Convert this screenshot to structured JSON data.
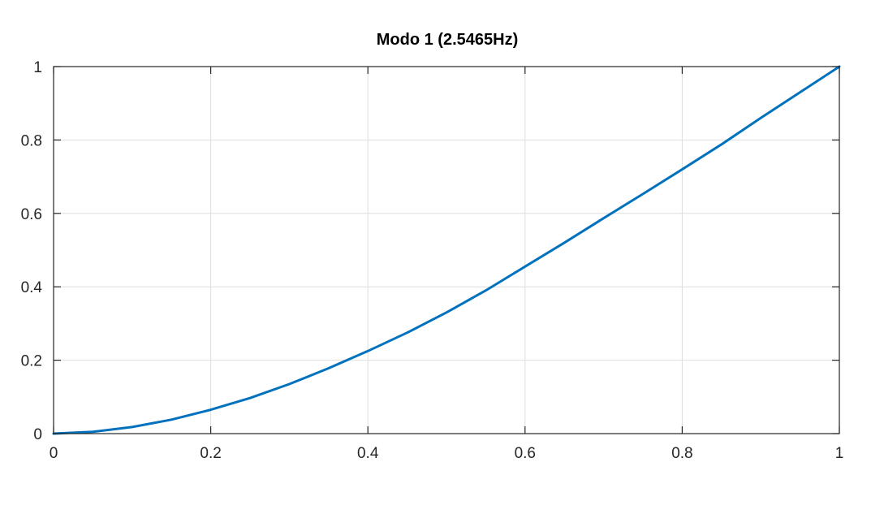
{
  "chart_data": {
    "type": "line",
    "title": "Modo 1 (2.5465Hz)",
    "xlabel": "",
    "ylabel": "",
    "xlim": [
      0,
      1
    ],
    "ylim": [
      0,
      1
    ],
    "xticks": [
      0,
      0.2,
      0.4,
      0.6,
      0.8,
      1
    ],
    "xtick_labels": [
      "0",
      "0.2",
      "0.4",
      "0.6",
      "0.8",
      "1"
    ],
    "yticks": [
      0,
      0.2,
      0.4,
      0.6,
      0.8,
      1
    ],
    "ytick_labels": [
      "0",
      "0.2",
      "0.4",
      "0.6",
      "0.8",
      "1"
    ],
    "grid": true,
    "series": [
      {
        "color": "#0072bd",
        "x": [
          0,
          0.05,
          0.1,
          0.15,
          0.2,
          0.25,
          0.3,
          0.35,
          0.4,
          0.45,
          0.5,
          0.55,
          0.6,
          0.65,
          0.7,
          0.75,
          0.8,
          0.85,
          0.9,
          0.95,
          1.0
        ],
        "y": [
          0,
          0.005,
          0.018,
          0.038,
          0.065,
          0.097,
          0.135,
          0.178,
          0.225,
          0.275,
          0.33,
          0.39,
          0.455,
          0.52,
          0.587,
          0.653,
          0.72,
          0.788,
          0.86,
          0.93,
          1.0
        ]
      }
    ]
  }
}
